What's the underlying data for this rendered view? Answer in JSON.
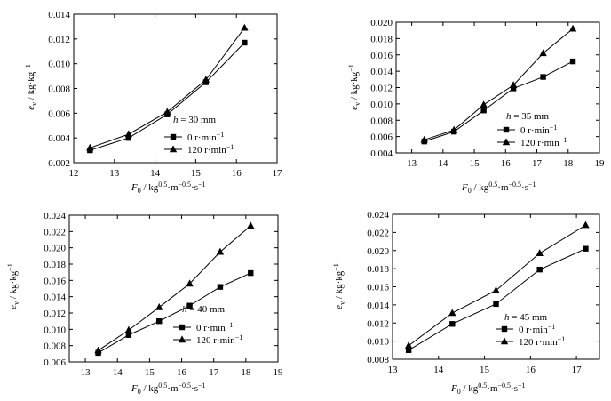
{
  "figure": {
    "x_unit_text": " / kg",
    "x_unit_sup1": "0.5",
    "x_unit_mid": "·m",
    "x_unit_sup2": "−0.5",
    "x_unit_end": "·s",
    "x_unit_sup3": "−1",
    "y_unit_text": " / kg·kg",
    "y_unit_sup": "−1"
  },
  "chart_data": [
    {
      "type": "line",
      "annotation": "h = 30 mm",
      "xlabel": "F0 / kg0.5·m−0.5·s−1",
      "ylabel": "ev / kg·kg−1",
      "xlim": [
        12,
        17
      ],
      "ylim": [
        0.002,
        0.014
      ],
      "xticks": [
        12,
        13,
        14,
        15,
        16,
        17
      ],
      "yticks": [
        0.002,
        0.004,
        0.006,
        0.008,
        0.01,
        0.012,
        0.014
      ],
      "ytick_labels": [
        "0.002",
        "0.004",
        "0.006",
        "0.008",
        "0.010",
        "0.012",
        "0.014"
      ],
      "legend_position": "bottom-right",
      "series": [
        {
          "name": "0 r·min−1",
          "marker": "square",
          "x": [
            12.4,
            13.35,
            14.3,
            15.25,
            16.2
          ],
          "values": [
            0.003,
            0.004,
            0.0059,
            0.0085,
            0.0117
          ]
        },
        {
          "name": "120 r·min−1",
          "marker": "triangle",
          "x": [
            12.4,
            13.35,
            14.3,
            15.25,
            16.2
          ],
          "values": [
            0.0032,
            0.0043,
            0.0061,
            0.0087,
            0.0129
          ]
        }
      ]
    },
    {
      "type": "line",
      "annotation": "h = 35 mm",
      "xlabel": "F0 / kg0.5·m−0.5·s−1",
      "ylabel": "ev / kg·kg−1",
      "xlim": [
        12.5,
        19
      ],
      "ylim": [
        0.004,
        0.02
      ],
      "xticks": [
        13,
        14,
        15,
        16,
        17,
        18,
        19
      ],
      "yticks": [
        0.004,
        0.006,
        0.008,
        0.01,
        0.012,
        0.014,
        0.016,
        0.018,
        0.02
      ],
      "ytick_labels": [
        "0.004",
        "0.006",
        "0.008",
        "0.010",
        "0.012",
        "0.014",
        "0.016",
        "0.018",
        "0.020"
      ],
      "legend_position": "bottom-right",
      "series": [
        {
          "name": "0 r·min−1",
          "marker": "square",
          "x": [
            13.4,
            14.35,
            15.3,
            16.25,
            17.2,
            18.15
          ],
          "values": [
            0.0054,
            0.0066,
            0.0092,
            0.0119,
            0.0133,
            0.0152
          ]
        },
        {
          "name": "120 r·min−1",
          "marker": "triangle",
          "x": [
            13.4,
            14.35,
            15.3,
            16.25,
            17.2,
            18.15
          ],
          "values": [
            0.0056,
            0.0068,
            0.0099,
            0.0123,
            0.0162,
            0.0192
          ]
        }
      ]
    },
    {
      "type": "line",
      "annotation": "h = 40 mm",
      "xlabel": "F0 / kg0.5·m−0.5·s−1",
      "ylabel": "ev / kg·kg−1",
      "xlim": [
        12.5,
        19
      ],
      "ylim": [
        0.006,
        0.024
      ],
      "xticks": [
        13,
        14,
        15,
        16,
        17,
        18,
        19
      ],
      "yticks": [
        0.006,
        0.008,
        0.01,
        0.012,
        0.014,
        0.016,
        0.018,
        0.02,
        0.022,
        0.024
      ],
      "ytick_labels": [
        "0.006",
        "0.008",
        "0.010",
        "0.012",
        "0.014",
        "0.016",
        "0.018",
        "0.020",
        "0.022",
        "0.024"
      ],
      "legend_position": "bottom-right",
      "series": [
        {
          "name": "0 r·min−1",
          "marker": "square",
          "x": [
            13.4,
            14.35,
            15.3,
            16.25,
            17.2,
            18.15
          ],
          "values": [
            0.0071,
            0.0093,
            0.011,
            0.0129,
            0.0152,
            0.0169
          ]
        },
        {
          "name": "120 r·min−1",
          "marker": "triangle",
          "x": [
            13.4,
            14.35,
            15.3,
            16.25,
            17.2,
            18.15
          ],
          "values": [
            0.0074,
            0.0099,
            0.0127,
            0.0156,
            0.0195,
            0.0227
          ]
        }
      ]
    },
    {
      "type": "line",
      "annotation": "h = 45 mm",
      "xlabel": "F0 / kg0.5·m−0.5·s−1",
      "ylabel": "ev / kg·kg−1",
      "xlim": [
        13,
        17.5
      ],
      "ylim": [
        0.008,
        0.024
      ],
      "xticks": [
        13,
        14,
        15,
        16,
        17
      ],
      "yticks": [
        0.008,
        0.01,
        0.012,
        0.014,
        0.016,
        0.018,
        0.02,
        0.022,
        0.024
      ],
      "ytick_labels": [
        "0.008",
        "0.010",
        "0.012",
        "0.014",
        "0.016",
        "0.018",
        "0.020",
        "0.022",
        "0.024"
      ],
      "legend_position": "bottom-right",
      "series": [
        {
          "name": "0 r·min−1",
          "marker": "square",
          "x": [
            13.35,
            14.3,
            15.25,
            16.2,
            17.2
          ],
          "values": [
            0.009,
            0.0119,
            0.0141,
            0.0179,
            0.0202
          ]
        },
        {
          "name": "120 r·min−1",
          "marker": "triangle",
          "x": [
            13.35,
            14.3,
            15.25,
            16.2,
            17.2
          ],
          "values": [
            0.0095,
            0.0131,
            0.0156,
            0.0197,
            0.0228
          ]
        }
      ]
    }
  ]
}
